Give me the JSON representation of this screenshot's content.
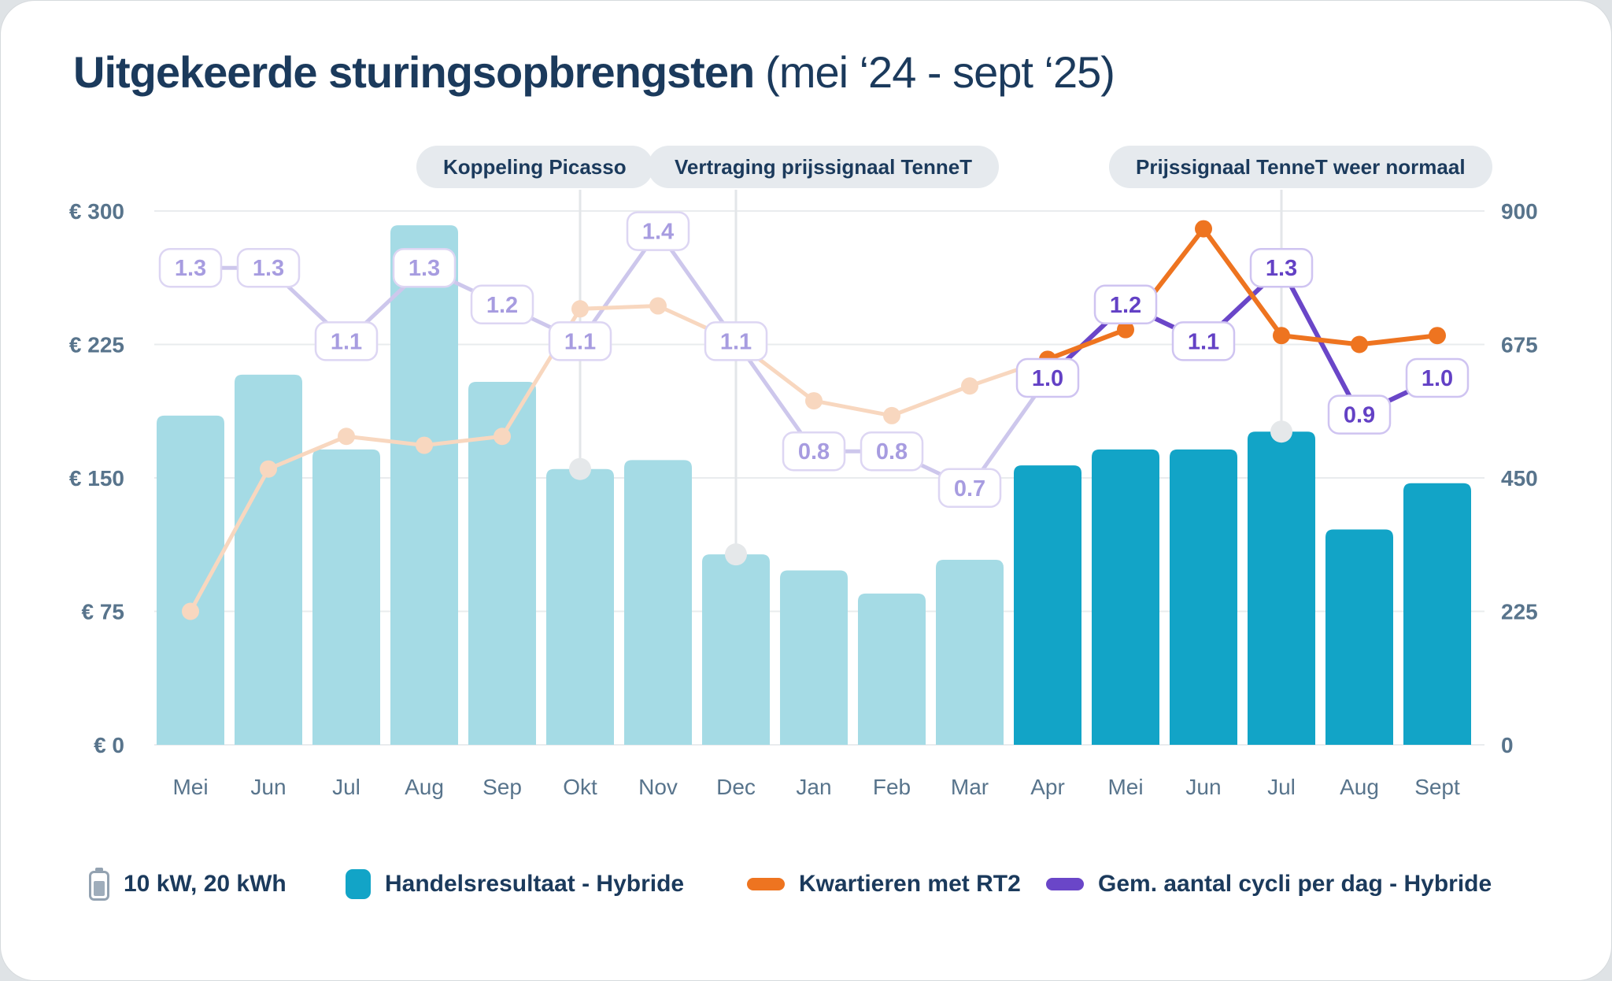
{
  "title": {
    "main": "Uitgekeerde sturingsopbrengsten",
    "period": "(mei ‘24 - sept ‘25)"
  },
  "annotations": [
    {
      "label": "Koppeling Picasso",
      "month_index": 5
    },
    {
      "label": "Vertraging prijssignaal TenneT",
      "month_index": 7
    },
    {
      "label": "Prijssignaal TenneT weer normaal",
      "month_index": 14
    }
  ],
  "chart_data": {
    "type": "bar+line combo",
    "categories": [
      "Mei",
      "Jun",
      "Jul",
      "Aug",
      "Sep",
      "Okt",
      "Nov",
      "Dec",
      "Jan",
      "Feb",
      "Mar",
      "Apr",
      "Mei",
      "Jun",
      "Jul",
      "Aug",
      "Sept"
    ],
    "series": [
      {
        "name": "Handelsresultaat - Hybride",
        "type": "bar",
        "axis": "left",
        "values": [
          185,
          208,
          166,
          292,
          204,
          155,
          160,
          107,
          98,
          85,
          104,
          157,
          166,
          166,
          176,
          121,
          147
        ],
        "highlight_from_index": 11,
        "color_faded": "#a5dbe5",
        "color_solid": "#12a4c7"
      },
      {
        "name": "Kwartieren met RT2",
        "type": "line",
        "axis": "right",
        "values": [
          225,
          465,
          520,
          505,
          520,
          735,
          740,
          680,
          580,
          555,
          605,
          650,
          700,
          870,
          690,
          675,
          690
        ],
        "highlight_from_index": 11,
        "color_faded": "#f8d7bf",
        "color_solid": "#ee7420"
      },
      {
        "name": "Gem. aantal cycli per dag - Hybride",
        "type": "line",
        "axis": "cycles",
        "values": [
          1.3,
          1.3,
          1.1,
          1.3,
          1.2,
          1.1,
          1.4,
          1.1,
          0.8,
          0.8,
          0.7,
          1.0,
          1.2,
          1.1,
          1.3,
          0.9,
          1.0
        ],
        "highlight_from_index": 11,
        "color_faded": "#cdc7ec",
        "color_solid": "#6a46c8",
        "label_text_faded": "#a79ce0",
        "label_text_solid": "#6341c5",
        "label_border_faded": "#ddd6f3",
        "label_border_solid": "#cfc4f1"
      }
    ],
    "left_axis": {
      "ticks": [
        {
          "label": "€ 300",
          "value": 300
        },
        {
          "label": "€ 225",
          "value": 225
        },
        {
          "label": "€ 150",
          "value": 150
        },
        {
          "label": "€ 75",
          "value": 75
        },
        {
          "label": "€ 0",
          "value": 0
        }
      ],
      "range": [
        0,
        300
      ]
    },
    "right_axis": {
      "ticks": [
        {
          "label": "900",
          "value": 900
        },
        {
          "label": "675",
          "value": 675
        },
        {
          "label": "450",
          "value": 450
        },
        {
          "label": "225",
          "value": 225
        },
        {
          "label": "0",
          "value": 0
        }
      ],
      "range": [
        0,
        900
      ]
    },
    "grid": "horizontal",
    "legend_position": "bottom"
  },
  "legend": {
    "items": [
      {
        "icon": "battery-icon",
        "label": "10 kW, 20 kWh",
        "color": "#93a2b1"
      },
      {
        "icon": "bar-swatch",
        "label": "Handelsresultaat - Hybride",
        "color": "#12a4c7"
      },
      {
        "icon": "line-swatch",
        "label": "Kwartieren met RT2",
        "color": "#ee7420"
      },
      {
        "icon": "line-swatch",
        "label": "Gem. aantal cycli per dag - Hybride",
        "color": "#6a46c8"
      }
    ]
  },
  "colors": {
    "title": "#1b3a5c",
    "axis_text": "#58748c",
    "gridline": "#e9ecee",
    "connector": "#e3e6e9",
    "connector_dot": "#e5e8ea",
    "badge_bg": "#e6eaee"
  }
}
